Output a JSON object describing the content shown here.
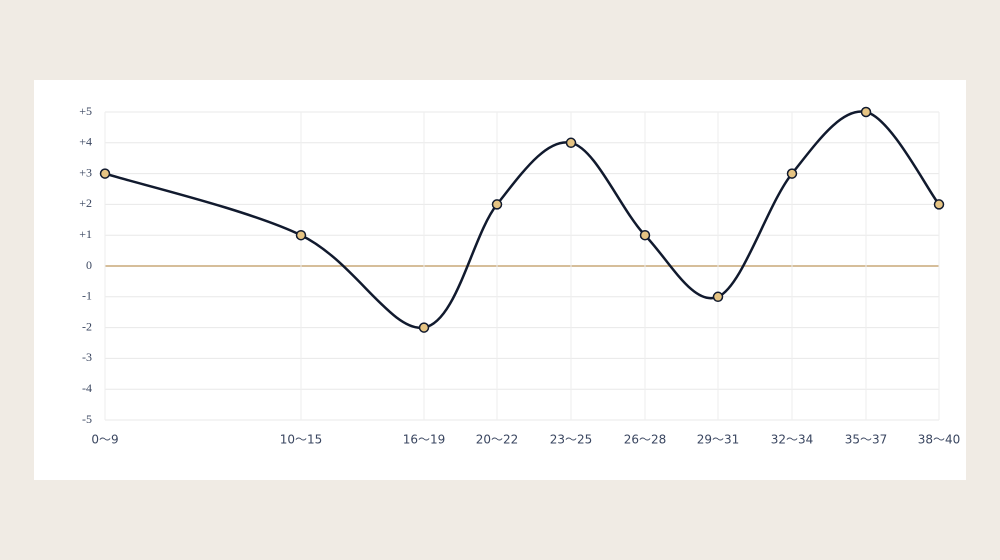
{
  "chart_data": {
    "type": "line",
    "categories": [
      "0〜9",
      "10〜15",
      "16〜19",
      "20〜22",
      "23〜25",
      "26〜28",
      "29〜31",
      "32〜34",
      "35〜37",
      "38〜40"
    ],
    "values": [
      3,
      1,
      -2,
      2,
      4,
      1,
      -1,
      3,
      5,
      2
    ],
    "color": "#111a2e",
    "marker_color": "#e6c483",
    "zero_line_color": "#c8a878",
    "ylim": [
      -5,
      5
    ],
    "yticks": [
      {
        "value": -5,
        "label": "-5"
      },
      {
        "value": -4,
        "label": "-4"
      },
      {
        "value": -3,
        "label": "-3"
      },
      {
        "value": -2,
        "label": "-2"
      },
      {
        "value": -1,
        "label": "-1"
      },
      0,
      {
        "value": 1,
        "label": "+1"
      },
      {
        "value": 2,
        "label": "+2"
      },
      {
        "value": 3,
        "label": "+3"
      },
      {
        "value": 4,
        "label": "+4"
      },
      {
        "value": 5,
        "label": "+5"
      }
    ],
    "grid": true
  }
}
